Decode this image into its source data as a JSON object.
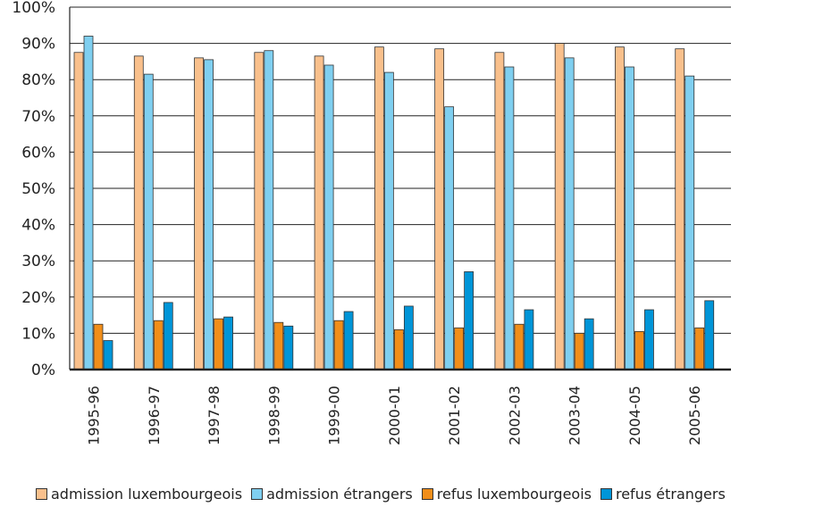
{
  "chart_data": {
    "type": "bar",
    "title": "",
    "xlabel": "",
    "ylabel": "",
    "ylim": [
      0,
      100
    ],
    "yticks": [
      "0%",
      "10%",
      "20%",
      "30%",
      "40%",
      "50%",
      "60%",
      "70%",
      "80%",
      "90%",
      "100%"
    ],
    "grid": true,
    "legend_position": "bottom",
    "categories": [
      "1995-96",
      "1996-97",
      "1997-98",
      "1998-99",
      "1999-00",
      "2000-01",
      "2001-02",
      "2002-03",
      "2003-04",
      "2004-05",
      "2005-06"
    ],
    "series": [
      {
        "name": "admission luxembourgeois",
        "color": "#F9C08C",
        "values": [
          87.5,
          86.5,
          86,
          87.5,
          86.5,
          89,
          88.5,
          87.5,
          90,
          89,
          88.5
        ]
      },
      {
        "name": "admission étrangers",
        "color": "#7FCFF0",
        "values": [
          92,
          81.5,
          85.5,
          88,
          84,
          82,
          72.5,
          83.5,
          86,
          83.5,
          81
        ]
      },
      {
        "name": "refus luxembourgeois",
        "color": "#F18E1A",
        "values": [
          12.5,
          13.5,
          14,
          13,
          13.5,
          11,
          11.5,
          12.5,
          10,
          10.5,
          11.5
        ]
      },
      {
        "name": "refus étrangers",
        "color": "#0095D8",
        "values": [
          8,
          18.5,
          14.5,
          12,
          16,
          17.5,
          27,
          16.5,
          14,
          16.5,
          19
        ]
      }
    ]
  }
}
